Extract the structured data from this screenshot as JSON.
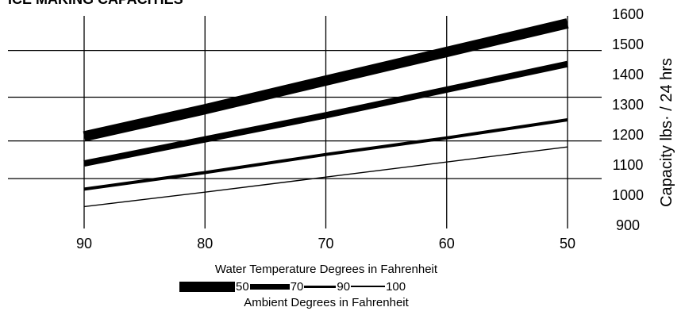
{
  "chart_data": {
    "type": "line",
    "title": "ICE MAKING CAPACITIES",
    "xlabel": "Water Temperature Degrees in Fahrenheit",
    "ylabel": "Capacity lbs· / 24 hrs",
    "x": [
      90,
      80,
      70,
      60,
      50
    ],
    "x_ticks": [
      "90",
      "80",
      "70",
      "60",
      "50"
    ],
    "y_ticks": [
      "1600",
      "1500",
      "1400",
      "1300",
      "1200",
      "1100",
      "1000",
      "900"
    ],
    "ylim": [
      900,
      1600
    ],
    "legend_title": "Ambient Degrees in Fahrenheit",
    "legend_placement": "bottom",
    "grid": true,
    "series": [
      {
        "name": "50",
        "values": [
          1195,
          1285,
          1380,
          1475,
          1570
        ]
      },
      {
        "name": "70",
        "values": [
          1105,
          1185,
          1265,
          1350,
          1435
        ]
      },
      {
        "name": "90",
        "values": [
          1020,
          1075,
          1135,
          1190,
          1250
        ]
      },
      {
        "name": "100",
        "values": [
          962,
          1010,
          1060,
          1110,
          1160
        ]
      }
    ],
    "colors": {
      "line": "#000000",
      "grid": "#000000"
    }
  }
}
